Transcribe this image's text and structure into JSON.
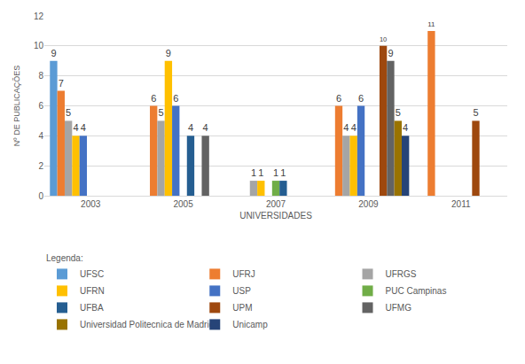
{
  "chart_data": {
    "type": "bar",
    "x_label": "UNIVERSIDADES",
    "y_label": "Nº DE PUBLICAÇÕES",
    "legend_title": "Legenda:",
    "categories": [
      "2003",
      "2005",
      "2007",
      "2009",
      "2011"
    ],
    "series": [
      {
        "name": "UFSC",
        "color": "#5b9bd5",
        "values": [
          9,
          null,
          null,
          null,
          null
        ]
      },
      {
        "name": "UFRJ",
        "color": "#ed7d31",
        "values": [
          7,
          6,
          null,
          6,
          11
        ]
      },
      {
        "name": "UFRGS",
        "color": "#a5a5a5",
        "values": [
          5,
          5,
          1,
          4,
          null
        ]
      },
      {
        "name": "UFRN",
        "color": "#ffc000",
        "values": [
          4,
          9,
          1,
          4,
          null
        ]
      },
      {
        "name": "USP",
        "color": "#4472c4",
        "values": [
          4,
          6,
          null,
          6,
          null
        ]
      },
      {
        "name": "PUC Campinas",
        "color": "#70ad47",
        "values": [
          null,
          null,
          1,
          null,
          null
        ]
      },
      {
        "name": "UFBA",
        "color": "#255e91",
        "values": [
          null,
          4,
          1,
          null,
          null
        ]
      },
      {
        "name": "UPM",
        "color": "#9e480e",
        "values": [
          null,
          null,
          null,
          10,
          5
        ]
      },
      {
        "name": "UFMG",
        "color": "#636363",
        "values": [
          null,
          4,
          null,
          9,
          null
        ]
      },
      {
        "name": "Universidad Politecnica de Madrid",
        "color": "#997300",
        "values": [
          null,
          null,
          null,
          5,
          null
        ]
      },
      {
        "name": "Unicamp",
        "color": "#264478",
        "values": [
          null,
          null,
          null,
          4,
          null
        ]
      }
    ],
    "ylim": [
      0,
      12
    ],
    "yticks": [
      0,
      2,
      4,
      6,
      8,
      10,
      12
    ],
    "grid": true,
    "data_labels": true,
    "legend": "bottom"
  }
}
